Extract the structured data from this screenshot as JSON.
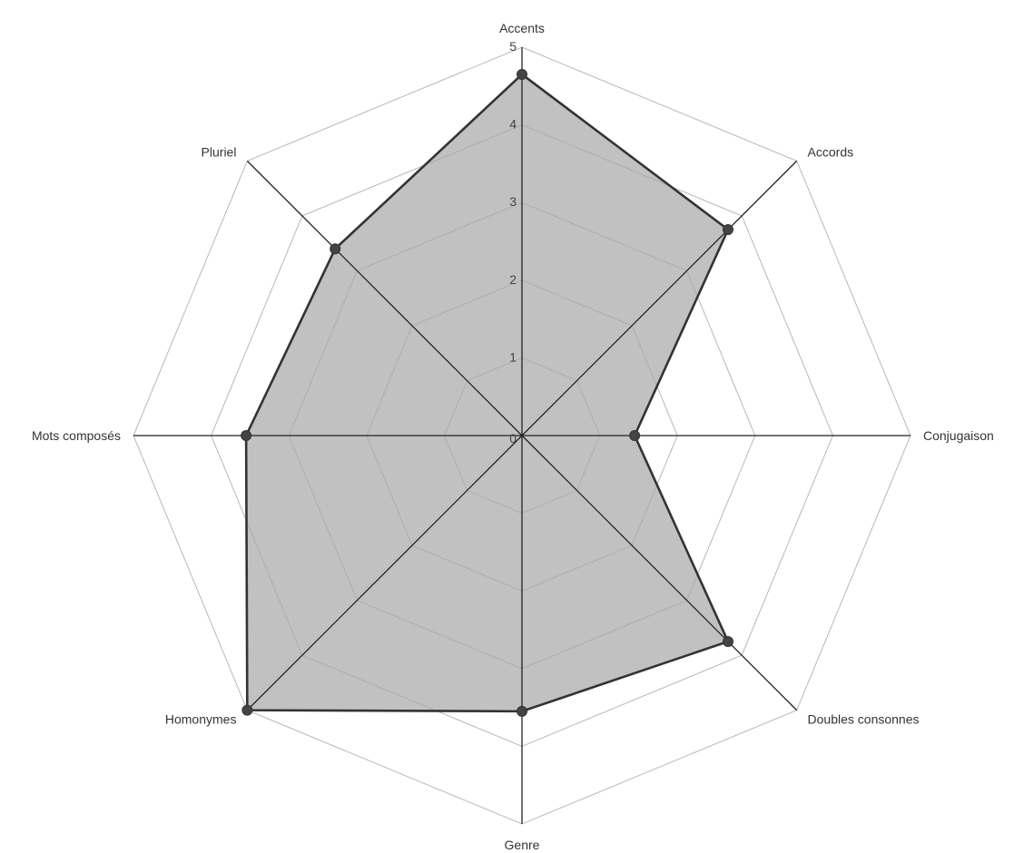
{
  "chart_data": {
    "type": "radar",
    "categories": [
      "Accents",
      "Accords",
      "Conjugaison",
      "Doubles consonnes",
      "Genre",
      "Homonymes",
      "Mots composés",
      "Pluriel"
    ],
    "series": [
      {
        "values": [
          4.65,
          3.75,
          1.45,
          3.75,
          3.55,
          5.0,
          3.55,
          3.4
        ]
      }
    ],
    "rlim": [
      0,
      5
    ],
    "ticks": [
      "0",
      "1",
      "2",
      "3",
      "4",
      "5"
    ],
    "grid": true,
    "colors": {
      "fill": "#a9a9a9",
      "line": "#333333",
      "grid": "#b8b8b8",
      "spoke": "#222222"
    }
  }
}
